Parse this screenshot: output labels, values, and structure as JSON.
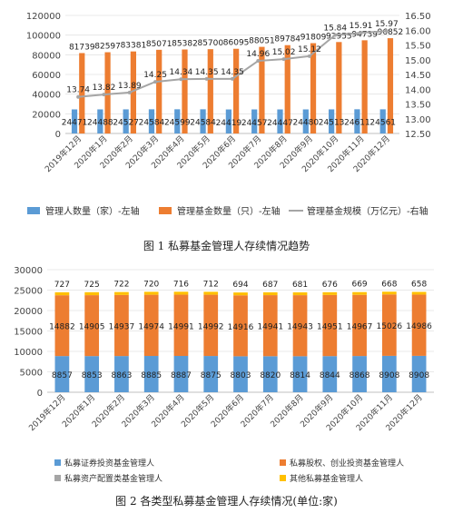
{
  "captions": {
    "fig1": "图 1  私募基金管理人存续情况趋势",
    "fig2": "图 2  各类型私募基金管理人存续情况(单位:家)"
  },
  "chart_data": [
    {
      "type": "bar",
      "categories": [
        "2019年12月",
        "2020年1月",
        "2020年2月",
        "2020年3月",
        "2020年4月",
        "2020年5月",
        "2020年6月",
        "2020年7月",
        "2020年8月",
        "2020年9月",
        "2020年10月",
        "2020年11月",
        "2020年12月"
      ],
      "series": [
        {
          "name": "管理人数量（家）-左轴",
          "type": "bar",
          "axis": "left",
          "color": "#5B9BD5",
          "values": [
            24471,
            24488,
            24527,
            24584,
            24599,
            24584,
            24419,
            24457,
            24447,
            24480,
            24513,
            24611,
            24561
          ]
        },
        {
          "name": "管理基金数量（只）-左轴",
          "type": "bar",
          "axis": "left",
          "color": "#ED7D31",
          "values": [
            81739,
            82597,
            83381,
            85071,
            85382,
            85700,
            86095,
            88051,
            89784,
            91809,
            92955,
            94739,
            96852
          ]
        },
        {
          "name": "管理基金规模（万亿元）-右轴",
          "type": "line",
          "axis": "right",
          "color": "#A5A5A5",
          "values": [
            13.74,
            13.82,
            13.89,
            14.25,
            14.34,
            14.35,
            14.35,
            14.96,
            15.02,
            15.12,
            15.84,
            15.91,
            15.97
          ]
        }
      ],
      "ylim_left": [
        0,
        120000
      ],
      "yticks_left": [
        "0",
        "20000",
        "40000",
        "60000",
        "80000",
        "100000",
        "120000"
      ],
      "ylim_right": [
        12.5,
        16.5
      ],
      "yticks_right": [
        "12.50",
        "13.00",
        "13.50",
        "14.00",
        "14.50",
        "15.00",
        "15.50",
        "16.00",
        "16.50"
      ],
      "legend_position": "bottom"
    },
    {
      "type": "bar",
      "stacked": true,
      "categories": [
        "2019年12月",
        "2020年1月",
        "2020年2月",
        "2020年3月",
        "2020年4月",
        "2020年5月",
        "2020年6月",
        "2020年7月",
        "2020年8月",
        "2020年9月",
        "2020年10月",
        "2020年11月",
        "2020年12月"
      ],
      "series": [
        {
          "name": "私募证券投资基金管理人",
          "color": "#5B9BD5",
          "values": [
            8857,
            8853,
            8863,
            8885,
            8887,
            8875,
            8803,
            8820,
            8814,
            8844,
            8868,
            8908,
            8908
          ]
        },
        {
          "name": "私募股权、创业投资基金管理人",
          "color": "#ED7D31",
          "values": [
            14882,
            14905,
            14937,
            14974,
            14991,
            14992,
            14916,
            14941,
            14943,
            14951,
            14967,
            15026,
            14986
          ]
        },
        {
          "name": "私募资产配置类基金管理人",
          "color": "#A5A5A5",
          "values": [
            5,
            5,
            5,
            5,
            5,
            5,
            6,
            9,
            9,
            9,
            9,
            9,
            9
          ]
        },
        {
          "name": "其他私募基金管理人",
          "color": "#FFC000",
          "values": [
            727,
            725,
            722,
            720,
            716,
            712,
            694,
            687,
            681,
            676,
            669,
            668,
            658
          ]
        }
      ],
      "ylim": [
        0,
        30000
      ],
      "yticks": [
        "0",
        "5000",
        "10000",
        "15000",
        "20000",
        "25000",
        "30000"
      ],
      "legend_position": "bottom"
    }
  ]
}
